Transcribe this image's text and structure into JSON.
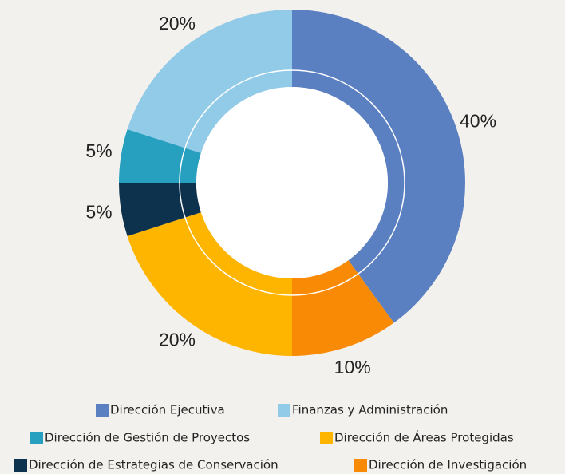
{
  "chart_data": {
    "type": "donut",
    "categories": [
      "Dirección Ejecutiva",
      "Dirección de Investigación",
      "Dirección de Áreas Protegidas",
      "Dirección de Estrategias de Conservación",
      "Dirección de Gestión de Proyectos",
      "Finanzas y Administración"
    ],
    "values": [
      40,
      10,
      20,
      5,
      5,
      20
    ],
    "value_labels": [
      "40%",
      "10%",
      "20%",
      "5%",
      "5%",
      "20%"
    ],
    "colors": [
      "#5b80c2",
      "#f98a06",
      "#fdb500",
      "#0c324d",
      "#27a0c0",
      "#92cbe8"
    ],
    "legend": "bottom"
  }
}
